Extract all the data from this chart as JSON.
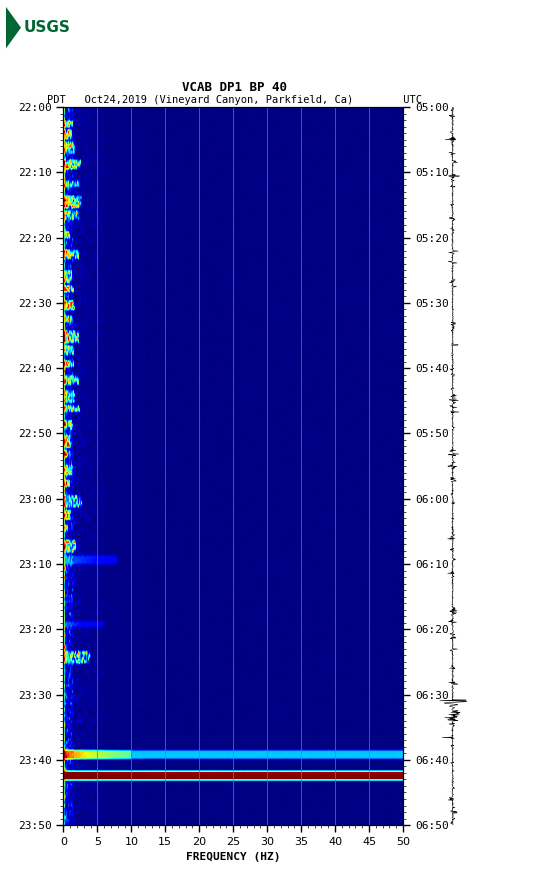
{
  "title_line1": "VCAB DP1 BP 40",
  "title_line2": "PDT   Oct24,2019 (Vineyard Canyon, Parkfield, Ca)        UTC",
  "xlabel": "FREQUENCY (HZ)",
  "freq_min": 0,
  "freq_max": 50,
  "left_time_labels": [
    "22:00",
    "22:10",
    "22:20",
    "22:30",
    "22:40",
    "22:50",
    "23:00",
    "23:10",
    "23:20",
    "23:30",
    "23:40",
    "23:50"
  ],
  "right_time_labels": [
    "05:00",
    "05:10",
    "05:20",
    "05:30",
    "05:40",
    "05:50",
    "06:00",
    "06:10",
    "06:20",
    "06:30",
    "06:40",
    "06:50"
  ],
  "freq_ticks": [
    0,
    5,
    10,
    15,
    20,
    25,
    30,
    35,
    40,
    45,
    50
  ],
  "vertical_grid_lines": [
    5,
    10,
    15,
    20,
    25,
    30,
    35,
    40,
    45
  ],
  "background_color": "#ffffff",
  "noise_seed": 42,
  "waveform_color": "#000000",
  "usgs_logo_color": "#006633",
  "grid_color": "#8B7355",
  "n_time": 240,
  "n_freq": 500
}
